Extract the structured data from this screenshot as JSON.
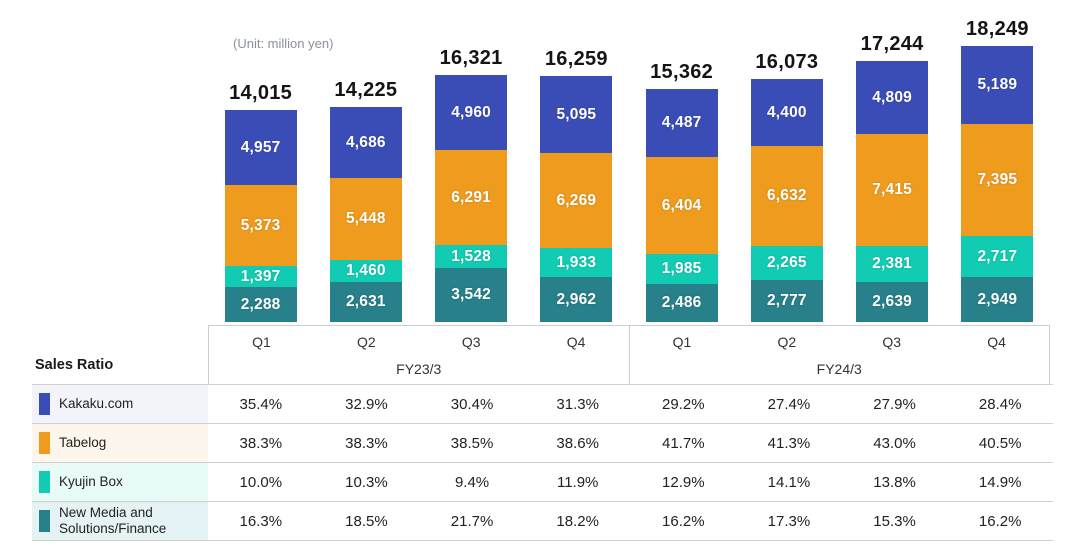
{
  "page": {
    "unit_label": "(Unit: million yen)",
    "sales_ratio_label": "Sales Ratio"
  },
  "colors": {
    "kakaku_com": "#3a4db7",
    "tabelog": "#ee9b1e",
    "kyujin_box": "#11ccb3",
    "new_media": "#27808a",
    "total_label_text": "#141414",
    "segment_label_text": "#ffffff",
    "axis_text": "#333333",
    "border": "#c9cdd2",
    "unit_label_text": "#8b919b"
  },
  "chart_data": {
    "type": "bar",
    "stacked": true,
    "title": "",
    "unit": "million yen",
    "legend_position": "table-below",
    "grid": false,
    "groups": [
      {
        "label": "FY23/3",
        "categories": [
          "Q1",
          "Q2",
          "Q3",
          "Q4"
        ]
      },
      {
        "label": "FY24/3",
        "categories": [
          "Q1",
          "Q2",
          "Q3",
          "Q4"
        ]
      }
    ],
    "categories": [
      "Q1",
      "Q2",
      "Q3",
      "Q4",
      "Q1",
      "Q2",
      "Q3",
      "Q4"
    ],
    "totals": [
      14015,
      14225,
      16321,
      16259,
      15362,
      16073,
      17244,
      18249
    ],
    "series": [
      {
        "name": "Kakaku.com",
        "color_key": "kakaku_com",
        "values": [
          4957,
          4686,
          4960,
          5095,
          4487,
          4400,
          4809,
          5189
        ]
      },
      {
        "name": "Tabelog",
        "color_key": "tabelog",
        "values": [
          5373,
          5448,
          6291,
          6269,
          6404,
          6632,
          7415,
          7395
        ]
      },
      {
        "name": "Kyujin Box",
        "color_key": "kyujin_box",
        "values": [
          1397,
          1460,
          1528,
          1933,
          1985,
          2265,
          2381,
          2717
        ]
      },
      {
        "name": "New Media and Solutions/Finance",
        "color_key": "new_media",
        "values": [
          2288,
          2631,
          3542,
          2962,
          2486,
          2777,
          2639,
          2949
        ]
      }
    ],
    "stack_order_top_to_bottom": [
      "Kakaku.com",
      "Tabelog",
      "Kyujin Box",
      "New Media and Solutions/Finance"
    ]
  },
  "sales_ratio_table": {
    "rows": [
      {
        "name": "Kakaku.com",
        "color_key": "kakaku_com",
        "tint": "#f3f4fa",
        "values": [
          "35.4%",
          "32.9%",
          "30.4%",
          "31.3%",
          "29.2%",
          "27.4%",
          "27.9%",
          "28.4%"
        ]
      },
      {
        "name": "Tabelog",
        "color_key": "tabelog",
        "tint": "#fdf6ec",
        "values": [
          "38.3%",
          "38.3%",
          "38.5%",
          "38.6%",
          "41.7%",
          "41.3%",
          "43.0%",
          "40.5%"
        ]
      },
      {
        "name": "Kyujin Box",
        "color_key": "kyujin_box",
        "tint": "#e8fbf6",
        "values": [
          "10.0%",
          "10.3%",
          "9.4%",
          "11.9%",
          "12.9%",
          "14.1%",
          "13.8%",
          "14.9%"
        ]
      },
      {
        "name": "New Media and Solutions/Finance",
        "color_key": "new_media",
        "tint": "#e5f3f4",
        "values": [
          "16.3%",
          "18.5%",
          "21.7%",
          "18.2%",
          "16.2%",
          "17.3%",
          "15.3%",
          "16.2%"
        ]
      }
    ]
  }
}
